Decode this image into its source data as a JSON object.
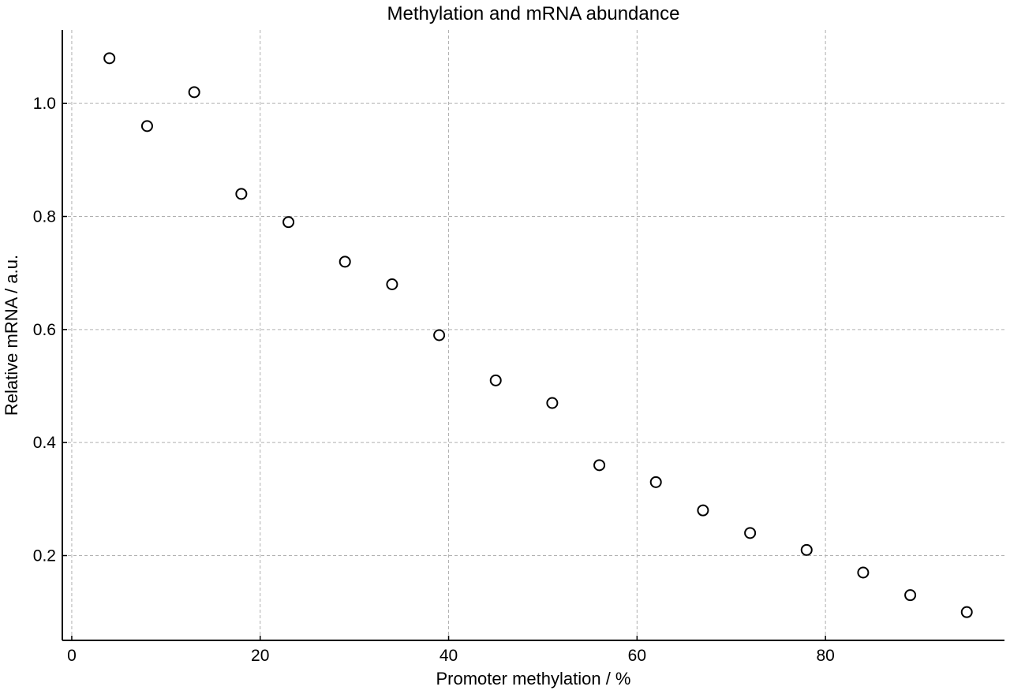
{
  "chart_data": {
    "type": "scatter",
    "title": "Methylation and mRNA abundance",
    "xlabel": "Promoter methylation / %",
    "ylabel": "Relative mRNA / a.u.",
    "xlim": [
      -1,
      99
    ],
    "ylim": [
      0.05,
      1.13
    ],
    "x_ticks": [
      0,
      20,
      40,
      60,
      80
    ],
    "x_tick_labels": [
      "0",
      "20",
      "40",
      "60",
      "80"
    ],
    "y_ticks": [
      0.2,
      0.4,
      0.6,
      0.8,
      1.0
    ],
    "y_tick_labels": [
      "0.2",
      "0.4",
      "0.6",
      "0.8",
      "1.0"
    ],
    "grid": true,
    "marker": "open-circle",
    "marker_color": "#000000",
    "grid_color": "#b0b0b0",
    "points": [
      {
        "x": 4,
        "y": 1.08
      },
      {
        "x": 8,
        "y": 0.96
      },
      {
        "x": 13,
        "y": 1.02
      },
      {
        "x": 18,
        "y": 0.84
      },
      {
        "x": 23,
        "y": 0.79
      },
      {
        "x": 29,
        "y": 0.72
      },
      {
        "x": 34,
        "y": 0.68
      },
      {
        "x": 39,
        "y": 0.59
      },
      {
        "x": 45,
        "y": 0.51
      },
      {
        "x": 51,
        "y": 0.47
      },
      {
        "x": 56,
        "y": 0.36
      },
      {
        "x": 62,
        "y": 0.33
      },
      {
        "x": 67,
        "y": 0.28
      },
      {
        "x": 72,
        "y": 0.24
      },
      {
        "x": 78,
        "y": 0.21
      },
      {
        "x": 84,
        "y": 0.17
      },
      {
        "x": 89,
        "y": 0.13
      },
      {
        "x": 95,
        "y": 0.1
      }
    ]
  }
}
